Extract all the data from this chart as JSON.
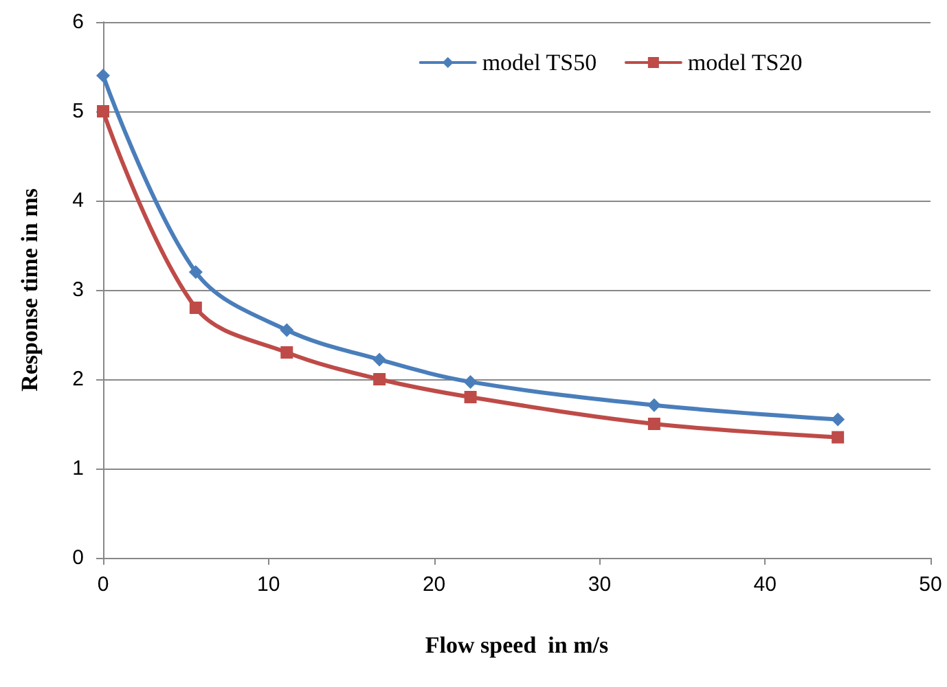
{
  "chart_data": {
    "type": "line",
    "xlabel": "Flow speed  in m/s",
    "ylabel": "Response time in ms",
    "x": [
      0,
      5.6,
      11.1,
      16.7,
      22.2,
      33.3,
      44.4
    ],
    "series": [
      {
        "name": "model TS50",
        "color": "#4a7ebb",
        "marker": "diamond",
        "values": [
          5.4,
          3.2,
          2.55,
          2.22,
          1.97,
          1.71,
          1.55
        ]
      },
      {
        "name": "model TS20",
        "color": "#be4b48",
        "marker": "square",
        "values": [
          5.0,
          2.8,
          2.3,
          2.0,
          1.8,
          1.5,
          1.35
        ]
      }
    ],
    "xlim": [
      0,
      50
    ],
    "xticks": [
      0,
      10,
      20,
      30,
      40,
      50
    ],
    "ylim": [
      0,
      6
    ],
    "yticks": [
      0,
      1,
      2,
      3,
      4,
      5,
      6
    ],
    "grid": "y",
    "legend": "top right",
    "line_style": "solid"
  }
}
